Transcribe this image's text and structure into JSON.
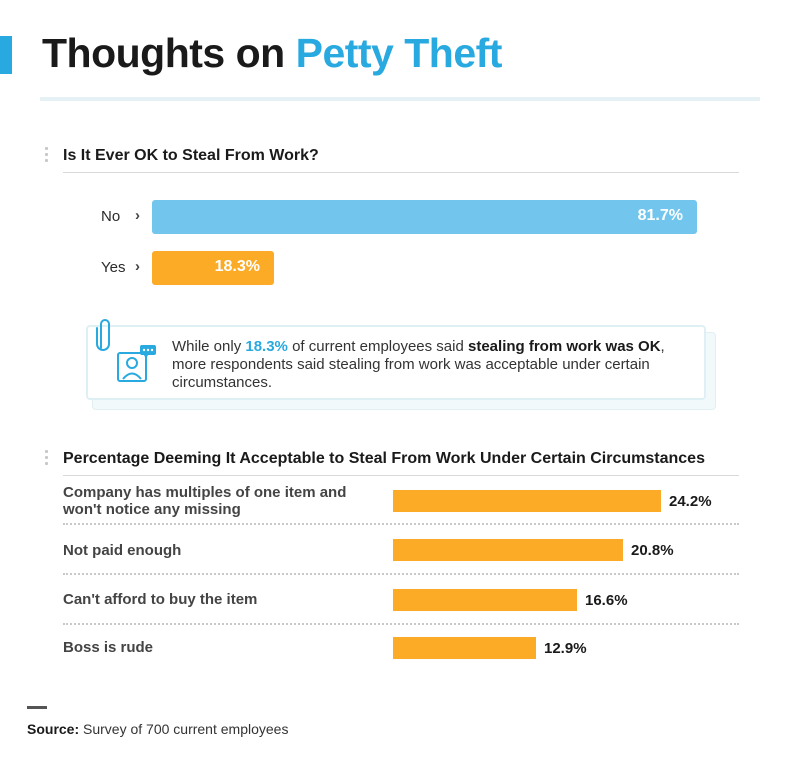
{
  "header": {
    "title_part1": "Thoughts on ",
    "title_accent": "Petty Theft",
    "accent_color": "#28a9df"
  },
  "callout": {
    "text_before": "While only ",
    "highlight_value": "18.3%",
    "text_middle": " of current employees said ",
    "bold_text": "stealing from work was OK",
    "text_after": ", more respondents said stealing from work was acceptable under certain circumstances.",
    "icons": [
      "paperclip-icon",
      "employee-chat-icon"
    ]
  },
  "footer": {
    "source_label": "Source:",
    "source_text": " Survey of 700 current employees"
  },
  "chart_data": [
    {
      "type": "bar",
      "orientation": "horizontal",
      "title": "Is It Ever OK to Steal From Work?",
      "categories": [
        "No",
        "Yes"
      ],
      "values": [
        81.7,
        18.3
      ],
      "value_labels": [
        "81.7%",
        "18.3%"
      ],
      "colors": [
        "#72c5ec",
        "#fbab25"
      ],
      "xlim": [
        0,
        100
      ],
      "grid": false
    },
    {
      "type": "bar",
      "orientation": "horizontal",
      "title": "Percentage Deeming It Acceptable to Steal From Work Under Certain Circumstances",
      "categories": [
        "Company has multiples of one item and won't notice any missing",
        "Not paid enough",
        "Can't afford to buy the item",
        "Boss is rude"
      ],
      "values": [
        24.2,
        20.8,
        16.6,
        12.9
      ],
      "value_labels": [
        "24.2%",
        "20.8%",
        "16.6%",
        "12.9%"
      ],
      "color": "#fbab25",
      "xlim": [
        0,
        100
      ],
      "grid": false
    }
  ]
}
